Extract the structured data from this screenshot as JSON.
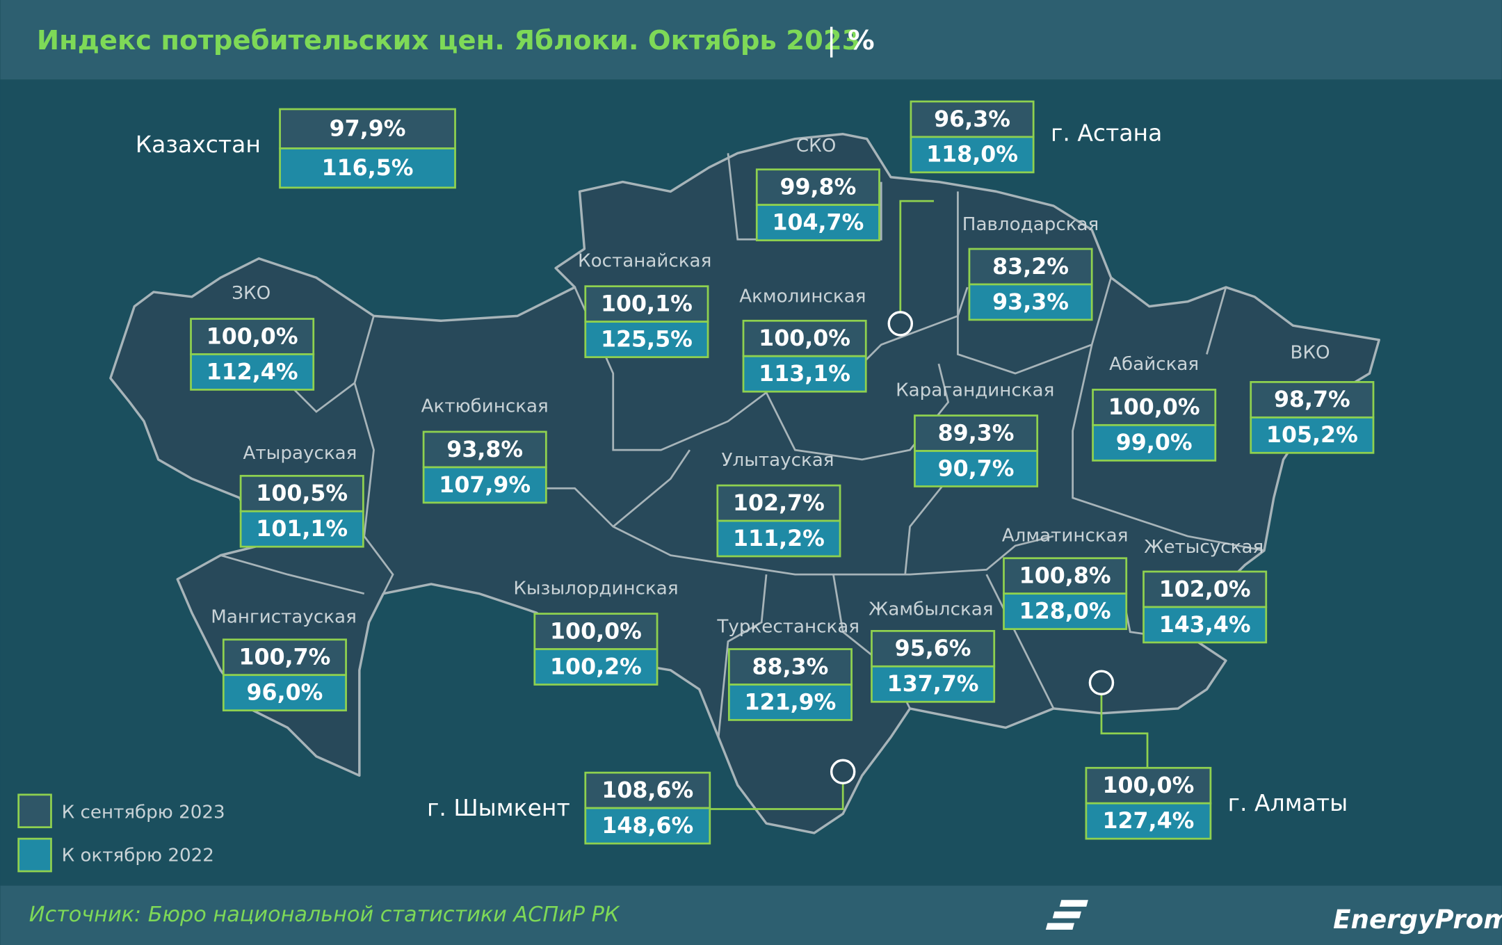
{
  "header": {
    "title": "Индекс потребительских цен. Яблоки. Октябрь 2023",
    "unit": "%"
  },
  "regions": [
    {
      "label": "Казахстан",
      "sep": "97,9%",
      "oct": "116,5%"
    },
    {
      "label": "СКО",
      "sep": "99,8%",
      "oct": "104,7%"
    },
    {
      "label": "г. Астана",
      "sep": "96,3%",
      "oct": "118,0%"
    },
    {
      "label": "Павлодарская",
      "sep": "83,2%",
      "oct": "93,3%"
    },
    {
      "label": "Костанайская",
      "sep": "100,1%",
      "oct": "125,5%"
    },
    {
      "label": "Акмолинская",
      "sep": "100,0%",
      "oct": "113,1%"
    },
    {
      "label": "ЗКО",
      "sep": "100,0%",
      "oct": "112,4%"
    },
    {
      "label": "Актюбинская",
      "sep": "93,8%",
      "oct": "107,9%"
    },
    {
      "label": "Абайская",
      "sep": "100,0%",
      "oct": "99,0%"
    },
    {
      "label": "ВКО",
      "sep": "98,7%",
      "oct": "105,2%"
    },
    {
      "label": "Карагандинская",
      "sep": "89,3%",
      "oct": "90,7%"
    },
    {
      "label": "Атырауская",
      "sep": "100,5%",
      "oct": "101,1%"
    },
    {
      "label": "Улытауская",
      "sep": "102,7%",
      "oct": "111,2%"
    },
    {
      "label": "Алматинская",
      "sep": "100,8%",
      "oct": "128,0%"
    },
    {
      "label": "Жетысуская",
      "sep": "102,0%",
      "oct": "143,4%"
    },
    {
      "label": "Кызылординская",
      "sep": "100,0%",
      "oct": "100,2%"
    },
    {
      "label": "Туркестанская",
      "sep": "88,3%",
      "oct": "121,9%"
    },
    {
      "label": "Жамбылская",
      "sep": "95,6%",
      "oct": "137,7%"
    },
    {
      "label": "Мангистауская",
      "sep": "100,7%",
      "oct": "96,0%"
    },
    {
      "label": "г. Шымкент",
      "sep": "108,6%",
      "oct": "148,6%"
    },
    {
      "label": "г. Алматы",
      "sep": "100,0%",
      "oct": "127,4%"
    }
  ],
  "legend": [
    "К сентябрю 2023",
    "К октябрю 2022"
  ],
  "footer": {
    "source": "Источник: Бюро национальной статистики АСПиР РК",
    "logo": "EnergyProm"
  }
}
